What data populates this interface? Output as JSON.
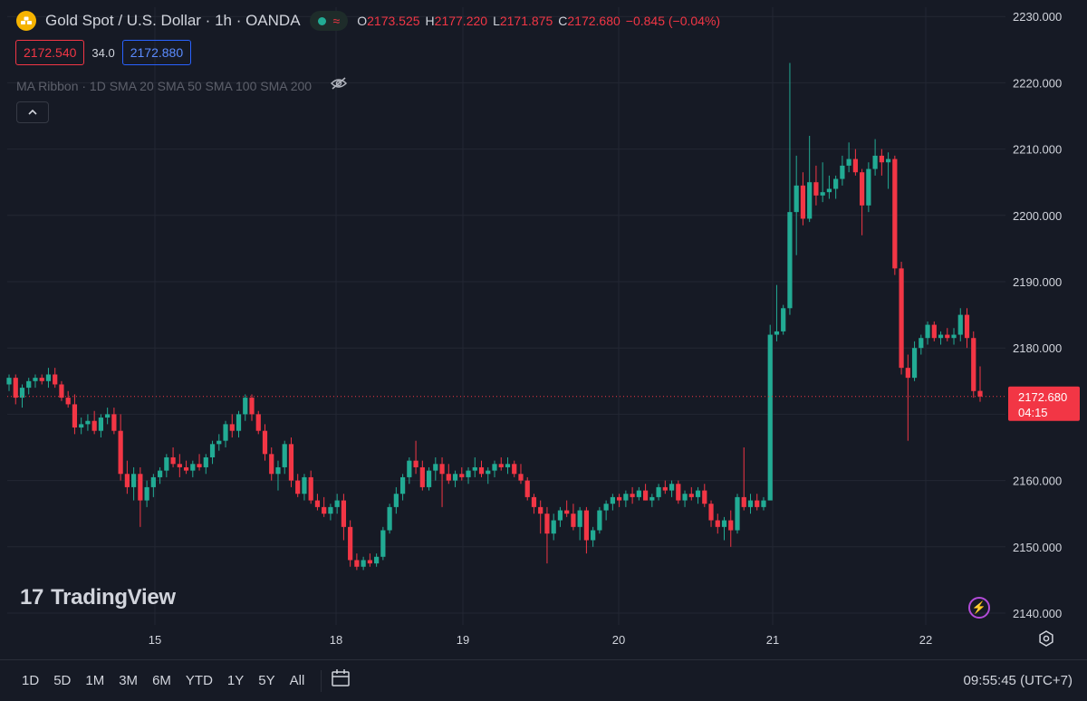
{
  "header": {
    "title": "Gold Spot / U.S. Dollar · 1h · OANDA",
    "symbol_icon": "gold-bars-icon",
    "live_icon": "market-open-dot-icon",
    "wave_icon": "wave-icon",
    "ohlc": {
      "o_label": "O",
      "o": "2173.525",
      "h_label": "H",
      "h": "2177.220",
      "l_label": "L",
      "l": "2171.875",
      "c_label": "C",
      "c": "2172.680",
      "change": "−0.845 (−0.04%)"
    }
  },
  "quote": {
    "sell": "2172.540",
    "spread": "34.0",
    "buy": "2172.880"
  },
  "indicator": {
    "label": "MA Ribbon · 1D SMA 20 SMA 50 SMA 100 SMA 200",
    "eye_icon": "eye-hidden-icon"
  },
  "collapse_icon": "chevron-up-icon",
  "logo": {
    "mark": "17",
    "text": "TradingView"
  },
  "bottom": {
    "ranges": [
      "1D",
      "5D",
      "1M",
      "3M",
      "6M",
      "YTD",
      "1Y",
      "5Y",
      "All"
    ],
    "calendar_icon": "calendar-icon",
    "clock": "09:55:45 (UTC+7)"
  },
  "colors": {
    "up": "#22ab94",
    "down": "#f23645",
    "bg": "#161a25",
    "grid": "#232733",
    "axis_text": "#d1d4dc"
  },
  "chart_data": {
    "type": "candlestick",
    "interval": "1h",
    "y_axis": {
      "ticks": [
        2140,
        2150,
        2160,
        2170,
        2180,
        2190,
        2200,
        2210,
        2220,
        2230
      ],
      "tick_labels": [
        "2140.000",
        "2150.000",
        "2160.000",
        "2170.000",
        "2180.000",
        "2190.000",
        "2200.000",
        "2210.000",
        "2220.000",
        "2230.000"
      ],
      "range": [
        2136.3,
        2232.5
      ]
    },
    "x_axis": {
      "tick_labels": [
        "15",
        "18",
        "19",
        "20",
        "21",
        "22"
      ]
    },
    "last_price": {
      "value": 2172.68,
      "label": "2172.680",
      "countdown": "04:15"
    },
    "candles_ohlc": [
      [
        2174.5,
        2176.0,
        2173.5,
        2175.5
      ],
      [
        2175.5,
        2176.0,
        2171.5,
        2172.5
      ],
      [
        2172.5,
        2174.5,
        2171.0,
        2174.0
      ],
      [
        2174.0,
        2175.5,
        2173.0,
        2175.0
      ],
      [
        2175.0,
        2176.0,
        2174.0,
        2175.5
      ],
      [
        2175.5,
        2176.0,
        2174.5,
        2175.0
      ],
      [
        2175.0,
        2177.0,
        2174.0,
        2176.0
      ],
      [
        2176.0,
        2177.0,
        2174.0,
        2174.5
      ],
      [
        2174.5,
        2175.0,
        2172.0,
        2172.5
      ],
      [
        2172.5,
        2173.5,
        2171.0,
        2171.5
      ],
      [
        2171.5,
        2173.0,
        2167.0,
        2168.0
      ],
      [
        2168.0,
        2169.5,
        2167.0,
        2168.5
      ],
      [
        2168.5,
        2170.0,
        2167.5,
        2169.0
      ],
      [
        2169.0,
        2170.5,
        2167.0,
        2167.5
      ],
      [
        2167.5,
        2170.0,
        2166.5,
        2169.5
      ],
      [
        2169.5,
        2171.0,
        2168.5,
        2170.0
      ],
      [
        2170.0,
        2171.0,
        2167.0,
        2167.5
      ],
      [
        2167.5,
        2170.0,
        2160.0,
        2161.0
      ],
      [
        2161.0,
        2163.0,
        2158.0,
        2159.0
      ],
      [
        2159.0,
        2162.0,
        2157.0,
        2161.0
      ],
      [
        2161.0,
        2162.0,
        2153.0,
        2157.0
      ],
      [
        2157.0,
        2160.0,
        2156.0,
        2159.0
      ],
      [
        2159.0,
        2161.0,
        2157.5,
        2160.5
      ],
      [
        2160.5,
        2162.0,
        2159.5,
        2161.5
      ],
      [
        2161.5,
        2164.0,
        2160.5,
        2163.5
      ],
      [
        2163.5,
        2165.0,
        2162.0,
        2162.5
      ],
      [
        2162.5,
        2164.0,
        2160.5,
        2162.0
      ],
      [
        2162.0,
        2163.0,
        2161.0,
        2161.5
      ],
      [
        2161.5,
        2163.0,
        2160.5,
        2162.5
      ],
      [
        2162.5,
        2164.0,
        2161.5,
        2162.0
      ],
      [
        2162.0,
        2164.0,
        2161.0,
        2163.5
      ],
      [
        2163.5,
        2166.0,
        2162.5,
        2165.5
      ],
      [
        2165.5,
        2167.0,
        2164.5,
        2166.0
      ],
      [
        2166.0,
        2169.0,
        2165.0,
        2168.5
      ],
      [
        2168.5,
        2170.0,
        2166.5,
        2167.5
      ],
      [
        2167.5,
        2170.5,
        2166.5,
        2170.0
      ],
      [
        2170.0,
        2173.0,
        2169.0,
        2172.5
      ],
      [
        2172.5,
        2173.0,
        2169.0,
        2170.0
      ],
      [
        2170.0,
        2170.5,
        2167.0,
        2167.5
      ],
      [
        2167.5,
        2168.5,
        2163.0,
        2164.0
      ],
      [
        2164.0,
        2165.0,
        2160.0,
        2161.0
      ],
      [
        2161.0,
        2163.0,
        2158.5,
        2162.0
      ],
      [
        2162.0,
        2166.0,
        2161.0,
        2165.5
      ],
      [
        2165.5,
        2166.5,
        2159.0,
        2160.0
      ],
      [
        2160.0,
        2161.0,
        2157.5,
        2158.0
      ],
      [
        2158.0,
        2161.0,
        2157.0,
        2160.5
      ],
      [
        2160.5,
        2161.5,
        2156.5,
        2157.0
      ],
      [
        2157.0,
        2158.0,
        2155.5,
        2156.0
      ],
      [
        2156.0,
        2157.5,
        2154.5,
        2155.0
      ],
      [
        2155.0,
        2156.5,
        2154.0,
        2156.0
      ],
      [
        2156.0,
        2158.0,
        2155.0,
        2157.0
      ],
      [
        2157.0,
        2158.0,
        2151.0,
        2153.0
      ],
      [
        2153.0,
        2154.0,
        2147.0,
        2148.0
      ],
      [
        2148.0,
        2149.0,
        2146.5,
        2147.0
      ],
      [
        2147.0,
        2148.5,
        2146.5,
        2148.0
      ],
      [
        2148.0,
        2149.0,
        2147.0,
        2147.5
      ],
      [
        2147.5,
        2149.0,
        2147.0,
        2148.5
      ],
      [
        2148.5,
        2153.0,
        2148.0,
        2152.5
      ],
      [
        2152.5,
        2156.5,
        2152.0,
        2156.0
      ],
      [
        2156.0,
        2159.0,
        2155.0,
        2158.0
      ],
      [
        2158.0,
        2161.0,
        2157.0,
        2160.5
      ],
      [
        2160.5,
        2163.5,
        2159.5,
        2163.0
      ],
      [
        2163.0,
        2166.0,
        2161.0,
        2162.0
      ],
      [
        2162.0,
        2163.0,
        2158.5,
        2159.0
      ],
      [
        2159.0,
        2162.0,
        2158.5,
        2161.5
      ],
      [
        2161.5,
        2163.5,
        2160.0,
        2162.5
      ],
      [
        2162.5,
        2163.5,
        2156.0,
        2161.0
      ],
      [
        2161.0,
        2162.5,
        2159.5,
        2160.0
      ],
      [
        2160.0,
        2161.5,
        2159.0,
        2161.0
      ],
      [
        2161.0,
        2162.0,
        2160.0,
        2160.5
      ],
      [
        2160.5,
        2162.0,
        2159.5,
        2161.5
      ],
      [
        2161.5,
        2163.5,
        2160.5,
        2162.0
      ],
      [
        2162.0,
        2163.0,
        2160.5,
        2161.0
      ],
      [
        2161.0,
        2162.0,
        2159.5,
        2161.5
      ],
      [
        2161.5,
        2163.0,
        2160.5,
        2162.5
      ],
      [
        2162.5,
        2163.5,
        2161.5,
        2162.0
      ],
      [
        2162.0,
        2163.5,
        2161.0,
        2162.5
      ],
      [
        2162.5,
        2163.0,
        2160.5,
        2161.0
      ],
      [
        2161.0,
        2162.5,
        2159.5,
        2160.0
      ],
      [
        2160.0,
        2160.5,
        2157.0,
        2157.5
      ],
      [
        2157.5,
        2158.0,
        2155.0,
        2156.0
      ],
      [
        2156.0,
        2157.0,
        2152.0,
        2155.0
      ],
      [
        2155.0,
        2156.0,
        2147.5,
        2152.0
      ],
      [
        2152.0,
        2155.0,
        2151.0,
        2154.0
      ],
      [
        2154.0,
        2156.0,
        2153.0,
        2155.5
      ],
      [
        2155.5,
        2157.0,
        2154.5,
        2155.0
      ],
      [
        2155.0,
        2156.5,
        2152.5,
        2153.0
      ],
      [
        2153.0,
        2156.0,
        2151.0,
        2155.5
      ],
      [
        2155.5,
        2156.0,
        2149.0,
        2151.0
      ],
      [
        2151.0,
        2153.0,
        2150.0,
        2152.5
      ],
      [
        2152.5,
        2156.0,
        2152.0,
        2155.5
      ],
      [
        2155.5,
        2157.0,
        2154.0,
        2156.5
      ],
      [
        2156.5,
        2158.0,
        2155.5,
        2157.5
      ],
      [
        2157.5,
        2158.0,
        2156.0,
        2157.0
      ],
      [
        2157.0,
        2158.5,
        2156.0,
        2158.0
      ],
      [
        2158.0,
        2159.0,
        2156.5,
        2157.5
      ],
      [
        2157.5,
        2159.0,
        2157.0,
        2158.5
      ],
      [
        2158.5,
        2159.5,
        2157.0,
        2157.0
      ],
      [
        2157.0,
        2158.0,
        2156.0,
        2157.5
      ],
      [
        2157.5,
        2159.5,
        2157.0,
        2159.0
      ],
      [
        2159.0,
        2160.0,
        2158.0,
        2158.5
      ],
      [
        2158.5,
        2160.0,
        2157.5,
        2159.5
      ],
      [
        2159.5,
        2160.0,
        2156.5,
        2157.0
      ],
      [
        2157.0,
        2158.5,
        2156.0,
        2158.0
      ],
      [
        2158.0,
        2159.0,
        2157.0,
        2157.5
      ],
      [
        2157.5,
        2159.0,
        2156.5,
        2158.5
      ],
      [
        2158.5,
        2159.5,
        2156.0,
        2156.5
      ],
      [
        2156.5,
        2157.0,
        2153.0,
        2154.0
      ],
      [
        2154.0,
        2155.0,
        2152.0,
        2153.0
      ],
      [
        2153.0,
        2154.5,
        2151.0,
        2154.0
      ],
      [
        2154.0,
        2155.5,
        2150.0,
        2152.5
      ],
      [
        2152.5,
        2158.0,
        2152.0,
        2157.5
      ],
      [
        2157.5,
        2165.0,
        2155.5,
        2156.0
      ],
      [
        2156.0,
        2158.0,
        2155.0,
        2157.0
      ],
      [
        2157.0,
        2158.0,
        2155.5,
        2156.0
      ],
      [
        2156.0,
        2157.5,
        2155.5,
        2157.0
      ],
      [
        2157.0,
        2183.5,
        2157.0,
        2182.0
      ],
      [
        2182.0,
        2189.5,
        2181.0,
        2182.5
      ],
      [
        2182.5,
        2186.5,
        2182.0,
        2186.0
      ],
      [
        2186.0,
        2223.0,
        2185.0,
        2200.5
      ],
      [
        2200.5,
        2209.0,
        2194.0,
        2204.5
      ],
      [
        2204.5,
        2206.5,
        2198.5,
        2199.5
      ],
      [
        2199.5,
        2212.0,
        2199.0,
        2205.0
      ],
      [
        2205.0,
        2207.5,
        2201.5,
        2203.0
      ],
      [
        2203.0,
        2208.0,
        2202.0,
        2203.5
      ],
      [
        2203.5,
        2206.0,
        2202.5,
        2204.0
      ],
      [
        2204.0,
        2206.0,
        2202.5,
        2205.5
      ],
      [
        2205.5,
        2209.0,
        2204.5,
        2207.5
      ],
      [
        2207.5,
        2211.0,
        2206.5,
        2208.5
      ],
      [
        2208.5,
        2210.0,
        2206.0,
        2206.5
      ],
      [
        2206.5,
        2207.0,
        2197.0,
        2201.5
      ],
      [
        2201.5,
        2208.0,
        2200.5,
        2207.0
      ],
      [
        2207.0,
        2211.5,
        2206.0,
        2209.0
      ],
      [
        2209.0,
        2210.0,
        2206.0,
        2208.0
      ],
      [
        2208.0,
        2209.5,
        2204.0,
        2208.5
      ],
      [
        2208.5,
        2209.0,
        2191.0,
        2192.0
      ],
      [
        2192.0,
        2193.0,
        2176.0,
        2177.0
      ],
      [
        2177.0,
        2179.0,
        2166.0,
        2175.5
      ],
      [
        2175.5,
        2181.0,
        2175.0,
        2180.0
      ],
      [
        2180.0,
        2182.0,
        2179.0,
        2181.5
      ],
      [
        2181.5,
        2184.0,
        2180.5,
        2183.5
      ],
      [
        2183.5,
        2184.0,
        2181.0,
        2181.5
      ],
      [
        2181.5,
        2182.5,
        2180.5,
        2182.0
      ],
      [
        2182.0,
        2183.0,
        2181.0,
        2181.5
      ],
      [
        2181.5,
        2183.0,
        2180.5,
        2182.0
      ],
      [
        2182.0,
        2186.0,
        2181.0,
        2185.0
      ],
      [
        2185.0,
        2186.0,
        2180.0,
        2181.5
      ],
      [
        2181.5,
        2182.5,
        2172.5,
        2173.5
      ],
      [
        2173.525,
        2177.22,
        2171.875,
        2172.68
      ]
    ]
  }
}
